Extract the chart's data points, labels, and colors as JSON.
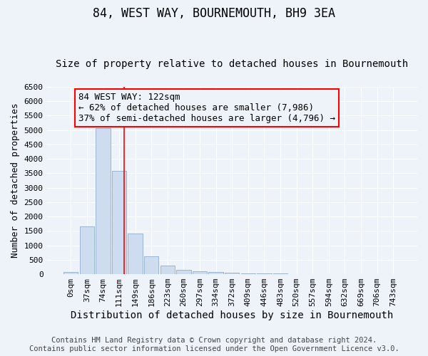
{
  "title": "84, WEST WAY, BOURNEMOUTH, BH9 3EA",
  "subtitle": "Size of property relative to detached houses in Bournemouth",
  "xlabel": "Distribution of detached houses by size in Bournemouth",
  "ylabel": "Number of detached properties",
  "footer_line1": "Contains HM Land Registry data © Crown copyright and database right 2024.",
  "footer_line2": "Contains public sector information licensed under the Open Government Licence v3.0.",
  "bar_labels": [
    "0sqm",
    "37sqm",
    "74sqm",
    "111sqm",
    "149sqm",
    "186sqm",
    "223sqm",
    "260sqm",
    "297sqm",
    "334sqm",
    "372sqm",
    "409sqm",
    "446sqm",
    "483sqm",
    "520sqm",
    "557sqm",
    "594sqm",
    "632sqm",
    "669sqm",
    "706sqm",
    "743sqm"
  ],
  "bar_values": [
    75,
    1650,
    5060,
    3580,
    1400,
    610,
    290,
    150,
    110,
    70,
    55,
    30,
    25,
    15,
    10,
    5,
    5,
    3,
    2,
    2,
    0
  ],
  "bar_color": "#cddcef",
  "bar_edge_color": "#9ab4d4",
  "ylim_max": 6500,
  "ytick_step": 500,
  "property_label": "84 WEST WAY: 122sqm",
  "annotation_line1": "← 62% of detached houses are smaller (7,986)",
  "annotation_line2": "37% of semi-detached houses are larger (4,796) →",
  "vline_x_idx": 3.3,
  "background_color": "#eef2f9",
  "grid_color": "#ffffff",
  "title_fontsize": 12,
  "subtitle_fontsize": 10,
  "xlabel_fontsize": 10,
  "ylabel_fontsize": 9,
  "tick_fontsize": 8,
  "annotation_fontsize": 9,
  "footer_fontsize": 7.5
}
